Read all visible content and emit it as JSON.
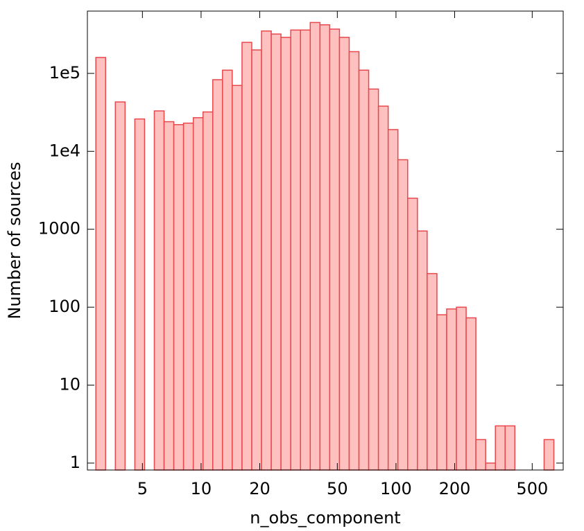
{
  "chart_data": {
    "type": "histogram",
    "x_label": "n_obs_component",
    "y_label": "Number of sources",
    "bins": [
      2.884,
      3.236,
      3.631,
      4.074,
      4.571,
      5.129,
      5.754,
      6.457,
      7.244,
      8.128,
      9.12,
      10.23,
      11.48,
      12.88,
      14.45,
      16.22,
      18.2,
      20.42,
      22.91,
      25.7,
      28.84,
      32.36,
      36.31,
      40.74,
      45.71,
      51.29,
      57.54,
      64.57,
      72.44,
      81.28,
      91.2,
      102.3,
      114.8,
      128.8,
      144.5,
      162.2,
      182.0,
      204.2,
      229.1,
      257.0,
      288.4,
      323.6,
      363.1,
      407.4,
      457.1,
      512.9,
      575.4,
      645.7
    ],
    "values": [
      160000,
      0,
      43000,
      0,
      26000,
      0,
      33000,
      24000,
      22000,
      23000,
      27000,
      32000,
      83000,
      110000,
      70000,
      250000,
      200000,
      350000,
      320000,
      290000,
      360000,
      360000,
      450000,
      420000,
      370000,
      290000,
      190000,
      110000,
      63000,
      38000,
      19000,
      7800,
      2500,
      950,
      270,
      80,
      95,
      100,
      73,
      2,
      1,
      3,
      3,
      0,
      0,
      0,
      2
    ],
    "fill": "#ffc0c0",
    "edge_color": "#e8474b",
    "xscale": "log",
    "yscale": "log",
    "xlim": [
      2.61,
      721
    ],
    "ylim": [
      0.815,
      630000
    ],
    "xticks": [
      5,
      10,
      20,
      50,
      100,
      200,
      500
    ],
    "yticks": [
      1,
      10,
      100,
      1000,
      {
        "value": 10000,
        "label": "1e4"
      },
      {
        "value": 100000,
        "label": "1e5"
      }
    ]
  }
}
